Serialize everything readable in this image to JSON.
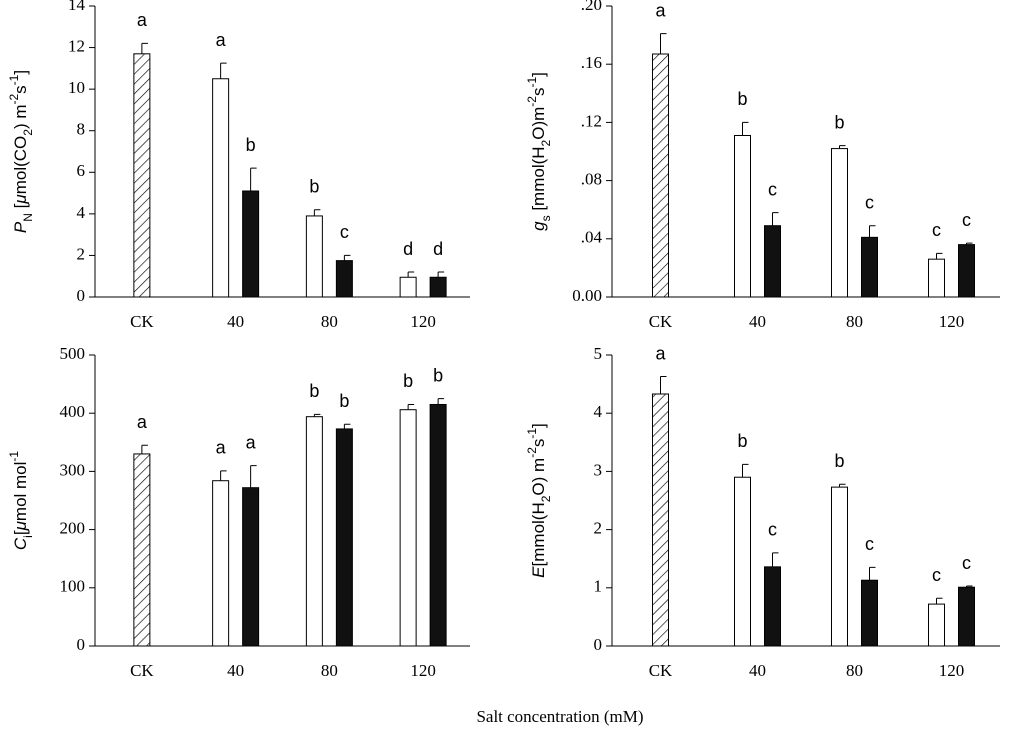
{
  "xlabel": "Salt concentration (mM)",
  "chart_data": [
    {
      "type": "bar",
      "ylabel": [
        {
          "text": "P",
          "style": "italic"
        },
        {
          "text": "N",
          "style": "sub"
        },
        {
          "text": " ["
        },
        {
          "text": "μ",
          "style": "italic"
        },
        {
          "text": "mol(CO"
        },
        {
          "text": "2",
          "style": "sub"
        },
        {
          "text": ") m"
        },
        {
          "text": "-2",
          "style": "sup"
        },
        {
          "text": "s"
        },
        {
          "text": "-1",
          "style": "sup"
        },
        {
          "text": "]"
        }
      ],
      "categories": [
        "CK",
        "40",
        "80",
        "120"
      ],
      "ylim": [
        0,
        14
      ],
      "yticks": [
        0,
        2,
        4,
        6,
        8,
        10,
        12,
        14
      ],
      "series": [
        {
          "color": "#ffffff",
          "hatch": true,
          "values": [
            11.7,
            null,
            null,
            null
          ],
          "errors": [
            0.5,
            null,
            null,
            null
          ],
          "letters": [
            "a",
            null,
            null,
            null
          ]
        },
        {
          "color": "#ffffff",
          "values": [
            null,
            10.5,
            3.9,
            0.95
          ],
          "errors": [
            null,
            0.75,
            0.3,
            0.25
          ],
          "letters": [
            null,
            "a",
            "b",
            "d"
          ]
        },
        {
          "color": "#111111",
          "values": [
            null,
            5.1,
            1.75,
            0.95
          ],
          "errors": [
            null,
            1.1,
            0.25,
            0.25
          ],
          "letters": [
            null,
            "b",
            "c",
            "d"
          ]
        }
      ]
    },
    {
      "type": "bar",
      "ylabel": [
        {
          "text": "g",
          "style": "italic"
        },
        {
          "text": "s",
          "style": "sub"
        },
        {
          "text": " [mmol(H"
        },
        {
          "text": "2",
          "style": "sub"
        },
        {
          "text": "O)m"
        },
        {
          "text": "-2",
          "style": "sup"
        },
        {
          "text": "s"
        },
        {
          "text": "-1",
          "style": "sup"
        },
        {
          "text": "]"
        }
      ],
      "categories": [
        "CK",
        "40",
        "80",
        "120"
      ],
      "ylim": [
        0,
        0.2
      ],
      "yticks": [
        {
          "value": 0,
          "label": "0.00"
        },
        {
          "value": 0.04,
          "label": ".04"
        },
        {
          "value": 0.08,
          "label": ".08"
        },
        {
          "value": 0.12,
          "label": ".12"
        },
        {
          "value": 0.16,
          "label": ".16"
        },
        {
          "value": 0.2,
          "label": ".20"
        }
      ],
      "series": [
        {
          "color": "#ffffff",
          "hatch": true,
          "values": [
            0.167,
            null,
            null,
            null
          ],
          "errors": [
            0.014,
            null,
            null,
            null
          ],
          "letters": [
            "a",
            null,
            null,
            null
          ]
        },
        {
          "color": "#ffffff",
          "values": [
            null,
            0.111,
            0.102,
            0.026
          ],
          "errors": [
            null,
            0.009,
            0.002,
            0.004
          ],
          "letters": [
            null,
            "b",
            "b",
            "c"
          ]
        },
        {
          "color": "#111111",
          "values": [
            null,
            0.049,
            0.041,
            0.036
          ],
          "errors": [
            null,
            0.009,
            0.008,
            0.001
          ],
          "letters": [
            null,
            "c",
            "c",
            "c"
          ]
        }
      ]
    },
    {
      "type": "bar",
      "ylabel": [
        {
          "text": "C",
          "style": "italic"
        },
        {
          "text": "i",
          "style": "sub"
        },
        {
          "text": "["
        },
        {
          "text": "μ",
          "style": "italic"
        },
        {
          "text": "mol mol"
        },
        {
          "text": "-1",
          "style": "sup"
        }
      ],
      "categories": [
        "CK",
        "40",
        "80",
        "120"
      ],
      "ylim": [
        0,
        500
      ],
      "yticks": [
        0,
        100,
        200,
        300,
        400,
        500
      ],
      "series": [
        {
          "color": "#ffffff",
          "hatch": true,
          "values": [
            330,
            null,
            null,
            null
          ],
          "errors": [
            15,
            null,
            null,
            null
          ],
          "letters": [
            "a",
            null,
            null,
            null
          ]
        },
        {
          "color": "#ffffff",
          "values": [
            null,
            284,
            394,
            406
          ],
          "errors": [
            null,
            17,
            4,
            9
          ],
          "letters": [
            null,
            "a",
            "b",
            "b"
          ]
        },
        {
          "color": "#111111",
          "values": [
            null,
            272,
            373,
            415
          ],
          "errors": [
            null,
            38,
            8,
            10
          ],
          "letters": [
            null,
            "a",
            "b",
            "b"
          ]
        }
      ]
    },
    {
      "type": "bar",
      "ylabel": [
        {
          "text": "E",
          "style": "italic"
        },
        {
          "text": "[mmol(H"
        },
        {
          "text": "2",
          "style": "sub"
        },
        {
          "text": "O) m"
        },
        {
          "text": "-2",
          "style": "sup"
        },
        {
          "text": "s"
        },
        {
          "text": "-1",
          "style": "sup"
        },
        {
          "text": "]"
        }
      ],
      "categories": [
        "CK",
        "40",
        "80",
        "120"
      ],
      "ylim": [
        0,
        5
      ],
      "yticks": [
        0,
        1,
        2,
        3,
        4,
        5
      ],
      "series": [
        {
          "color": "#ffffff",
          "hatch": true,
          "values": [
            4.33,
            null,
            null,
            null
          ],
          "errors": [
            0.3,
            null,
            null,
            null
          ],
          "letters": [
            "a",
            null,
            null,
            null
          ]
        },
        {
          "color": "#ffffff",
          "values": [
            null,
            2.9,
            2.73,
            0.72
          ],
          "errors": [
            null,
            0.22,
            0.05,
            0.1
          ],
          "letters": [
            null,
            "b",
            "b",
            "c"
          ]
        },
        {
          "color": "#111111",
          "values": [
            null,
            1.36,
            1.13,
            1.01
          ],
          "errors": [
            null,
            0.24,
            0.22,
            0.02
          ],
          "letters": [
            null,
            "c",
            "c",
            "c"
          ]
        }
      ]
    }
  ]
}
